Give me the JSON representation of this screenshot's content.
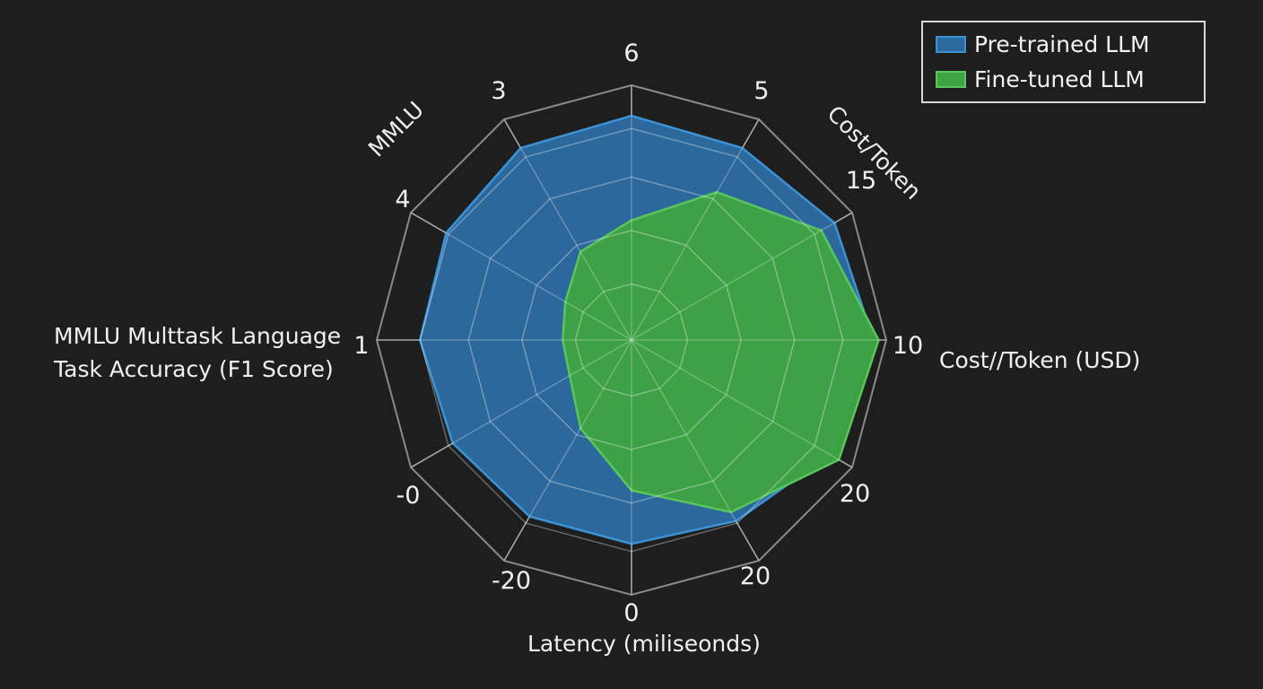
{
  "chart_data": {
    "type": "radar",
    "title": "",
    "axis_tick_labels": [
      "6",
      "5",
      "15",
      "10",
      "20",
      "20",
      "0",
      "-20",
      "-0",
      "1",
      "4",
      "3"
    ],
    "axis_titles": {
      "upper_left": "MMLU",
      "upper_right": "Cost/Token",
      "left_line1": "MMLU Multtask Language",
      "left_line2": "Task Accuracy (F1 Score)",
      "right": "Cost//Token (USD)",
      "bottom": "Latency (miliseonds)"
    },
    "grid_rings": 5,
    "grid": true,
    "value_scale": "fraction of outer ring",
    "series": [
      {
        "name": "Pre-trained LLM",
        "color": "#2d6aa0",
        "edge": "#3b93d6",
        "values": [
          0.88,
          0.87,
          0.92,
          0.95,
          0.9,
          0.82,
          0.8,
          0.8,
          0.81,
          0.83,
          0.84,
          0.87
        ]
      },
      {
        "name": "Fine-tuned LLM",
        "color": "#3fa344",
        "edge": "#58c65c",
        "values": [
          0.47,
          0.67,
          0.86,
          0.97,
          0.94,
          0.78,
          0.59,
          0.4,
          0.28,
          0.27,
          0.3,
          0.4
        ]
      }
    ],
    "legend_position": "top-right"
  },
  "colors": {
    "background": "#1e1e1e",
    "grid": "#8a8a8a"
  }
}
